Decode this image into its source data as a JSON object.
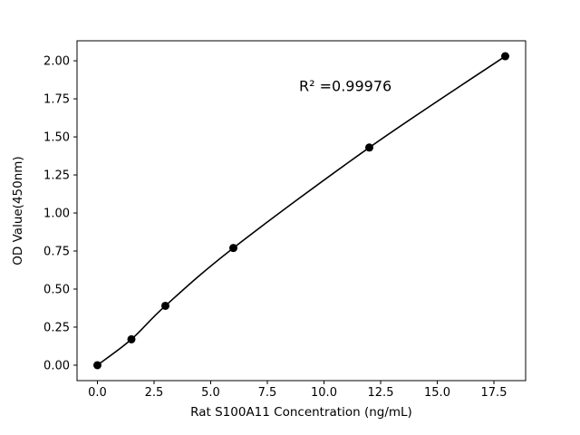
{
  "chart_data": {
    "type": "line",
    "title": "",
    "xlabel": "Rat S100A11 Concentration (ng/mL)",
    "ylabel": "OD Value(450nm)",
    "x": [
      0,
      1.5,
      3,
      6,
      12,
      18
    ],
    "y": [
      0.0,
      0.17,
      0.39,
      0.77,
      1.43,
      2.03
    ],
    "xlim": [
      -0.9,
      18.9
    ],
    "ylim": [
      -0.1015,
      2.1315
    ],
    "xticks": {
      "values": [
        0,
        2.5,
        5,
        7.5,
        10,
        12.5,
        15,
        17.5
      ],
      "labels": [
        "0.0",
        "2.5",
        "5.0",
        "7.5",
        "10.0",
        "12.5",
        "15.0",
        "17.5"
      ]
    },
    "yticks": {
      "values": [
        0,
        0.25,
        0.5,
        0.75,
        1.0,
        1.25,
        1.5,
        1.75,
        2.0
      ],
      "labels": [
        "0.00",
        "0.25",
        "0.50",
        "0.75",
        "1.00",
        "1.25",
        "1.50",
        "1.75",
        "2.00"
      ]
    },
    "annotation": {
      "text": "R² =0.99976",
      "x": 8.9,
      "y": 1.8
    },
    "colors": {
      "line": "#000000",
      "marker": "#000000",
      "spine": "#000000",
      "background": "#ffffff"
    },
    "marker_radius": 4.5,
    "line_width": 1.6,
    "grid": false,
    "legend": null
  }
}
